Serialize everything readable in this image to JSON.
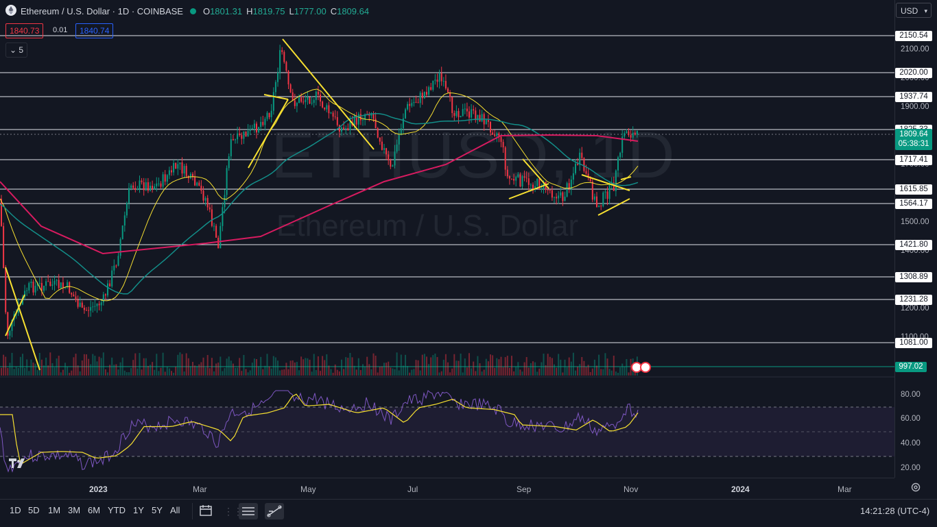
{
  "header": {
    "symbol_title": "Ethereum / U.S. Dollar · 1D · COINBASE",
    "ohlc": [
      {
        "key": "O",
        "value": "1801.31"
      },
      {
        "key": "H",
        "value": "1819.75"
      },
      {
        "key": "L",
        "value": "1777.00"
      },
      {
        "key": "C",
        "value": "1809.64"
      }
    ],
    "bid": "1840.73",
    "spread": "0.01",
    "ask": "1840.74",
    "indicators_count": "5",
    "currency": "USD"
  },
  "watermark": {
    "ticker": "ETHUSD, 1D",
    "name": "Ethereum / U.S. Dollar"
  },
  "price_axis": {
    "ticks": [
      "2100.00",
      "2000.00",
      "1900.00",
      "1700.00",
      "1500.00",
      "1400.00",
      "1200.00",
      "1100.00"
    ],
    "level_tags": [
      "2150.54",
      "2020.00",
      "1937.74",
      "1825.33",
      "1717.41",
      "1615.85",
      "1564.17",
      "1421.80",
      "1308.89",
      "1231.28",
      "1081.00"
    ],
    "last_price": "1809.64",
    "countdown": "05:38:31",
    "volume_tag": "997.02"
  },
  "rsi_axis": {
    "ticks": [
      "80.00",
      "60.00",
      "40.00",
      "20.00"
    ]
  },
  "time_axis": {
    "ticks": [
      "2023",
      "Mar",
      "May",
      "Jul",
      "Sep",
      "Nov",
      "2024",
      "Mar"
    ]
  },
  "toolbar": {
    "ranges": [
      "1D",
      "5D",
      "1M",
      "3M",
      "6M",
      "YTD",
      "1Y",
      "5Y",
      "All"
    ],
    "clock": "14:21:28 (UTC-4)"
  },
  "colors": {
    "up": "#089981",
    "down": "#f23645",
    "background": "#131722",
    "trendline": "#f7e031",
    "ma200": "#d81b60",
    "ma50": "#138e89",
    "rsi": "#7e57c2",
    "accent": "#2962ff"
  }
}
